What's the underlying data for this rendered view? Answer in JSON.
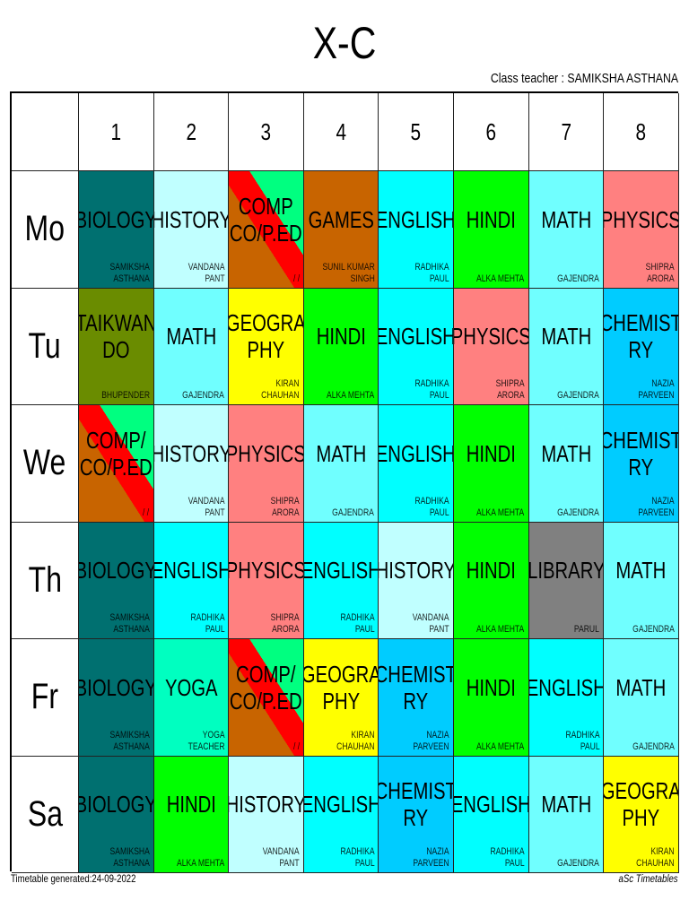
{
  "title": "X-C",
  "class_teacher": "Class teacher : SAMIKSHA ASTHANA",
  "periods": [
    "1",
    "2",
    "3",
    "4",
    "5",
    "6",
    "7",
    "8"
  ],
  "days": [
    {
      "label": "Mo",
      "slots": [
        {
          "subject": "BIOLOGY",
          "teacher": "SAMIKSHA\nASTHANA",
          "color": "#007070"
        },
        {
          "subject": "HISTORY",
          "teacher": "VANDANA PANT",
          "color": "#c0ffff"
        },
        {
          "subject": "COMP\nCO/P.ED",
          "teacher": "/ /",
          "split": true
        },
        {
          "subject": "GAMES",
          "teacher": "SUNIL KUMAR\nSINGH",
          "color": "#c86400"
        },
        {
          "subject": "ENGLISH",
          "teacher": "RADHIKA PAUL",
          "color": "#00ffff"
        },
        {
          "subject": "HINDI",
          "teacher": "ALKA MEHTA",
          "color": "#00ff00"
        },
        {
          "subject": "MATH",
          "teacher": "GAJENDRA",
          "color": "#70ffff"
        },
        {
          "subject": "PHYSICS",
          "teacher": "SHIPRA ARORA",
          "color": "#ff8080"
        }
      ]
    },
    {
      "label": "Tu",
      "slots": [
        {
          "subject": "TAIKWAN\nDO",
          "teacher": "BHUPENDER",
          "color": "#6a8c00"
        },
        {
          "subject": "MATH",
          "teacher": "GAJENDRA",
          "color": "#70ffff"
        },
        {
          "subject": "GEOGRA\nPHY",
          "teacher": "KIRAN CHAUHAN",
          "color": "#ffff00"
        },
        {
          "subject": "HINDI",
          "teacher": "ALKA MEHTA",
          "color": "#00ff00"
        },
        {
          "subject": "ENGLISH",
          "teacher": "RADHIKA PAUL",
          "color": "#00ffff"
        },
        {
          "subject": "PHYSICS",
          "teacher": "SHIPRA ARORA",
          "color": "#ff8080"
        },
        {
          "subject": "MATH",
          "teacher": "GAJENDRA",
          "color": "#70ffff"
        },
        {
          "subject": "CHEMIST\nRY",
          "teacher": "NAZIA PARVEEN",
          "color": "#00ccff"
        }
      ]
    },
    {
      "label": "We",
      "slots": [
        {
          "subject": "COMP/\nCO/P.ED",
          "teacher": "/ /",
          "split": true
        },
        {
          "subject": "HISTORY",
          "teacher": "VANDANA PANT",
          "color": "#c0ffff"
        },
        {
          "subject": "PHYSICS",
          "teacher": "SHIPRA ARORA",
          "color": "#ff8080"
        },
        {
          "subject": "MATH",
          "teacher": "GAJENDRA",
          "color": "#70ffff"
        },
        {
          "subject": "ENGLISH",
          "teacher": "RADHIKA PAUL",
          "color": "#00ffff"
        },
        {
          "subject": "HINDI",
          "teacher": "ALKA MEHTA",
          "color": "#00ff00"
        },
        {
          "subject": "MATH",
          "teacher": "GAJENDRA",
          "color": "#70ffff"
        },
        {
          "subject": "CHEMIST\nRY",
          "teacher": "NAZIA PARVEEN",
          "color": "#00ccff"
        }
      ]
    },
    {
      "label": "Th",
      "slots": [
        {
          "subject": "BIOLOGY",
          "teacher": "SAMIKSHA\nASTHANA",
          "color": "#007070"
        },
        {
          "subject": "ENGLISH",
          "teacher": "RADHIKA PAUL",
          "color": "#00ffff"
        },
        {
          "subject": "PHYSICS",
          "teacher": "SHIPRA ARORA",
          "color": "#ff8080"
        },
        {
          "subject": "ENGLISH",
          "teacher": "RADHIKA PAUL",
          "color": "#00ffff"
        },
        {
          "subject": "HISTORY",
          "teacher": "VANDANA PANT",
          "color": "#c0ffff"
        },
        {
          "subject": "HINDI",
          "teacher": "ALKA MEHTA",
          "color": "#00ff00"
        },
        {
          "subject": "LIBRARY",
          "teacher": "PARUL",
          "color": "#808080"
        },
        {
          "subject": "MATH",
          "teacher": "GAJENDRA",
          "color": "#70ffff"
        }
      ]
    },
    {
      "label": "Fr",
      "slots": [
        {
          "subject": "BIOLOGY",
          "teacher": "SAMIKSHA\nASTHANA",
          "color": "#007070"
        },
        {
          "subject": "YOGA",
          "teacher": "YOGA TEACHER",
          "color": "#00ffc0"
        },
        {
          "subject": "COMP/\nCO/P.ED",
          "teacher": "/ /",
          "split": true
        },
        {
          "subject": "GEOGRA\nPHY",
          "teacher": "KIRAN CHAUHAN",
          "color": "#ffff00"
        },
        {
          "subject": "CHEMIST\nRY",
          "teacher": "NAZIA PARVEEN",
          "color": "#00ccff"
        },
        {
          "subject": "HINDI",
          "teacher": "ALKA MEHTA",
          "color": "#00ff00"
        },
        {
          "subject": "ENGLISH",
          "teacher": "RADHIKA PAUL",
          "color": "#00ffff"
        },
        {
          "subject": "MATH",
          "teacher": "GAJENDRA",
          "color": "#70ffff"
        }
      ]
    },
    {
      "label": "Sa",
      "slots": [
        {
          "subject": "BIOLOGY",
          "teacher": "SAMIKSHA\nASTHANA",
          "color": "#007070"
        },
        {
          "subject": "HINDI",
          "teacher": "ALKA MEHTA",
          "color": "#00ff00"
        },
        {
          "subject": "HISTORY",
          "teacher": "VANDANA PANT",
          "color": "#c0ffff"
        },
        {
          "subject": "ENGLISH",
          "teacher": "RADHIKA PAUL",
          "color": "#00ffff"
        },
        {
          "subject": "CHEMIST\nRY",
          "teacher": "NAZIA PARVEEN",
          "color": "#00ccff"
        },
        {
          "subject": "ENGLISH",
          "teacher": "RADHIKA PAUL",
          "color": "#00ffff"
        },
        {
          "subject": "MATH",
          "teacher": "GAJENDRA",
          "color": "#70ffff"
        },
        {
          "subject": "GEOGRA\nPHY",
          "teacher": "KIRAN CHAUHAN",
          "color": "#ffff00"
        }
      ]
    }
  ],
  "split_colors": {
    "top": "#00ff80",
    "stripe": "#ff0000",
    "bottom": "#c86400"
  },
  "footer": {
    "generated": "Timetable generated:24-09-2022",
    "brand": "aSc Timetables"
  }
}
